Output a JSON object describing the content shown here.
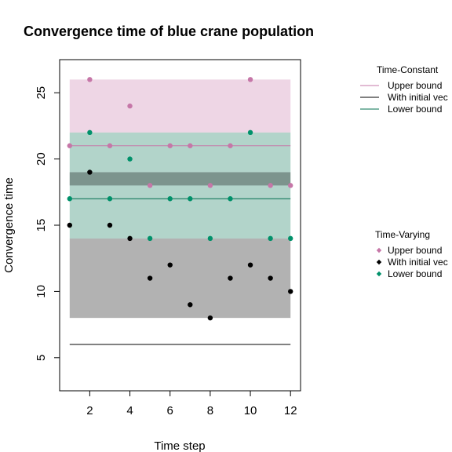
{
  "chart_data": {
    "type": "scatter",
    "title": "Convergence time of blue crane population",
    "xlabel": "Time step",
    "ylabel": "Convergence time",
    "xlim": [
      0.5,
      12.5
    ],
    "ylim": [
      2.5,
      27.5
    ],
    "x_ticks": [
      2,
      4,
      6,
      8,
      10,
      12
    ],
    "y_ticks": [
      5,
      10,
      15,
      20,
      25
    ],
    "grid": false,
    "x": [
      1,
      2,
      3,
      4,
      5,
      6,
      7,
      8,
      9,
      10,
      11,
      12
    ],
    "time_constant": {
      "legend_title": "Time-Constant",
      "lines": [
        {
          "name": "Upper bound",
          "y": 21,
          "band": [
            22,
            26
          ],
          "color": "#C677A8",
          "band_color": "#C677A8"
        },
        {
          "name": "With initial vec",
          "y": 6,
          "band": [
            8,
            14
          ],
          "color": "#000000",
          "band_color": "#000000"
        },
        {
          "name": "Lower bound",
          "y": 17,
          "band": [
            14,
            22
          ],
          "color": "#006F4E",
          "band_color": "#006F4E"
        }
      ],
      "extra_bands": [
        {
          "band": [
            18,
            19
          ],
          "color": "#000000"
        }
      ]
    },
    "time_varying": {
      "legend_title": "Time-Varying",
      "series": [
        {
          "name": "Upper bound",
          "color": "#C677A8",
          "values": [
            21,
            26,
            21,
            24,
            18,
            21,
            21,
            18,
            21,
            26,
            18,
            18
          ]
        },
        {
          "name": "With initial vec",
          "color": "#000000",
          "values": [
            15,
            19,
            15,
            14,
            11,
            12,
            9,
            8,
            11,
            12,
            11,
            10
          ]
        },
        {
          "name": "Lower bound",
          "color": "#00916A",
          "values": [
            17,
            22,
            17,
            20,
            14,
            17,
            17,
            14,
            17,
            22,
            14,
            14
          ]
        }
      ]
    }
  }
}
